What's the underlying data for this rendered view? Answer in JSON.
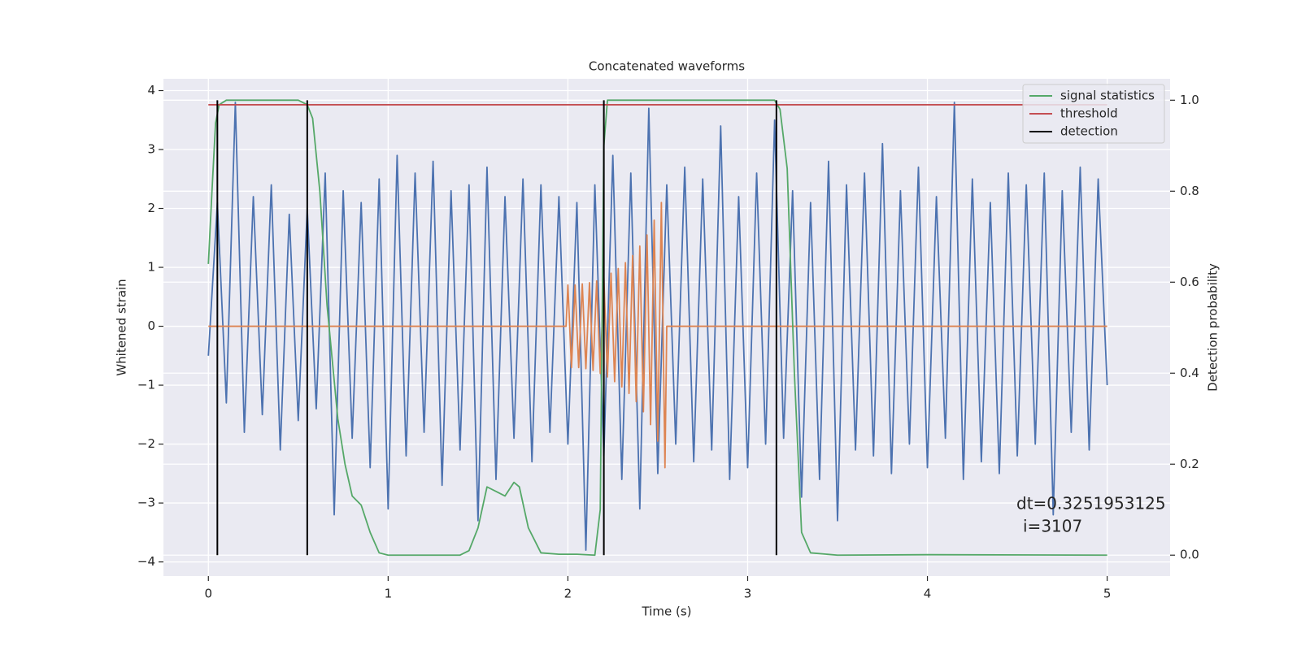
{
  "chart_data": {
    "type": "line",
    "title": "Concatenated waveforms",
    "x_label": "Time (s)",
    "y_label": "Whitened strain",
    "y2_label": "Detection probability",
    "xlim": [
      -0.25,
      5.35
    ],
    "ylim": [
      -4.24,
      4.2
    ],
    "y2lim": [
      -0.046,
      1.047
    ],
    "xticks": [
      0,
      1,
      2,
      3,
      4,
      5
    ],
    "yticks": [
      {
        "value": -4,
        "label": "−4"
      },
      {
        "value": -3,
        "label": "−3"
      },
      {
        "value": -2,
        "label": "−2"
      },
      {
        "value": -1,
        "label": "−1"
      },
      0,
      1,
      2,
      3,
      4
    ],
    "y2ticks": [
      {
        "value": 0,
        "label": "0.0"
      },
      0.2,
      0.4,
      0.6,
      0.8,
      {
        "value": 1,
        "label": "1.0"
      }
    ],
    "grid": true,
    "legend": "upper right",
    "annotation": [
      "dt=0.3251953125",
      "i=3107"
    ],
    "series": [
      {
        "color": "#4c72b0",
        "x": [
          0,
          0.05,
          0.1,
          0.15,
          0.2,
          0.25,
          0.3,
          0.35,
          0.4,
          0.45,
          0.5,
          0.55,
          0.6,
          0.65,
          0.7,
          0.75,
          0.8,
          0.85,
          0.9,
          0.95,
          1,
          1.05,
          1.1,
          1.15,
          1.2,
          1.25,
          1.3,
          1.35,
          1.4,
          1.45,
          1.5,
          1.55,
          1.6,
          1.65,
          1.7,
          1.75,
          1.8,
          1.85,
          1.9,
          1.95,
          2,
          2.05,
          2.1,
          2.15,
          2.2,
          2.25,
          2.3,
          2.35,
          2.4,
          2.45,
          2.5,
          2.55,
          2.6,
          2.65,
          2.7,
          2.75,
          2.8,
          2.85,
          2.9,
          2.95,
          3,
          3.05,
          3.1,
          3.15,
          3.2,
          3.25,
          3.3,
          3.35,
          3.4,
          3.45,
          3.5,
          3.55,
          3.6,
          3.65,
          3.7,
          3.75,
          3.8,
          3.85,
          3.9,
          3.95,
          4,
          4.05,
          4.1,
          4.15,
          4.2,
          4.25,
          4.3,
          4.35,
          4.4,
          4.45,
          4.5,
          4.55,
          4.6,
          4.65,
          4.7,
          4.75,
          4.8,
          4.85,
          4.9,
          4.95,
          5
        ],
        "values": [
          -0.5,
          2.1,
          -1.3,
          3.8,
          -1.8,
          2.2,
          -1.5,
          2.4,
          -2.1,
          1.9,
          -1.6,
          2.0,
          -1.4,
          2.6,
          -3.2,
          2.3,
          -1.9,
          2.1,
          -2.4,
          2.5,
          -3.1,
          2.9,
          -2.2,
          2.6,
          -1.8,
          2.8,
          -2.7,
          2.3,
          -2.1,
          2.4,
          -3.3,
          2.7,
          -2.6,
          2.2,
          -1.9,
          2.5,
          -2.3,
          2.4,
          -1.8,
          2.2,
          -2.0,
          2.1,
          -3.8,
          2.4,
          -2.2,
          2.9,
          -2.6,
          2.6,
          -3.1,
          3.7,
          -2.5,
          2.4,
          -2.0,
          2.7,
          -2.3,
          2.5,
          -2.1,
          3.4,
          -2.6,
          2.2,
          -2.4,
          2.6,
          -2.0,
          3.5,
          -1.9,
          2.3,
          -2.9,
          2.1,
          -2.6,
          2.8,
          -3.3,
          2.4,
          -2.1,
          2.6,
          -2.2,
          3.1,
          -2.5,
          2.3,
          -2.0,
          2.7,
          -2.4,
          2.2,
          -1.9,
          3.8,
          -2.6,
          2.5,
          -2.3,
          2.1,
          -2.5,
          2.6,
          -2.2,
          2.4,
          -2.0,
          2.6,
          -3.2,
          2.3,
          -1.8,
          2.7,
          -2.1,
          2.5,
          -1.0
        ]
      },
      {
        "color": "#dd8452",
        "x": [
          0,
          1.99,
          2.0,
          2.02,
          2.04,
          2.06,
          2.08,
          2.1,
          2.12,
          2.14,
          2.16,
          2.18,
          2.2,
          2.22,
          2.24,
          2.26,
          2.28,
          2.3,
          2.32,
          2.34,
          2.36,
          2.38,
          2.4,
          2.42,
          2.44,
          2.46,
          2.48,
          2.5,
          2.52,
          2.54,
          2.55,
          5
        ],
        "values": [
          0,
          0,
          0.7,
          -0.7,
          0.7,
          -0.7,
          0.72,
          -0.72,
          0.74,
          -0.75,
          0.77,
          -0.8,
          0.83,
          -0.86,
          0.9,
          -0.94,
          0.98,
          -1.03,
          1.08,
          -1.14,
          1.2,
          -1.28,
          1.36,
          -1.45,
          1.55,
          -1.67,
          1.8,
          -1.95,
          2.1,
          -2.4,
          0,
          0
        ]
      },
      {
        "name": "signal statistics",
        "color": "#55a868",
        "axis": "y2",
        "x": [
          0,
          0.02,
          0.04,
          0.06,
          0.1,
          0.5,
          0.55,
          0.58,
          0.62,
          0.66,
          0.72,
          0.76,
          0.8,
          0.85,
          0.9,
          0.95,
          1.0,
          1.4,
          1.45,
          1.5,
          1.55,
          1.6,
          1.65,
          1.7,
          1.73,
          1.78,
          1.85,
          1.95,
          2.05,
          2.15,
          2.18,
          2.2,
          2.22,
          3.15,
          3.18,
          3.22,
          3.26,
          3.3,
          3.35,
          3.5,
          4.0,
          5.0
        ],
        "values": [
          0.64,
          0.8,
          0.95,
          0.99,
          1.0,
          1.0,
          0.99,
          0.96,
          0.8,
          0.55,
          0.3,
          0.2,
          0.13,
          0.11,
          0.05,
          0.005,
          0,
          0,
          0.01,
          0.06,
          0.15,
          0.14,
          0.13,
          0.16,
          0.15,
          0.06,
          0.005,
          0.002,
          0.002,
          0,
          0.1,
          0.9,
          1.0,
          1.0,
          0.98,
          0.85,
          0.4,
          0.05,
          0.005,
          0,
          0.001,
          0
        ]
      },
      {
        "name": "threshold",
        "color": "#c44e52",
        "axis": "y2",
        "x": [
          0,
          5
        ],
        "values": [
          0.99,
          0.99
        ]
      },
      {
        "name": "detection",
        "color": "#000000",
        "axis": "y2",
        "x": [
          0.05,
          0.55,
          2.2,
          3.16
        ]
      }
    ]
  }
}
